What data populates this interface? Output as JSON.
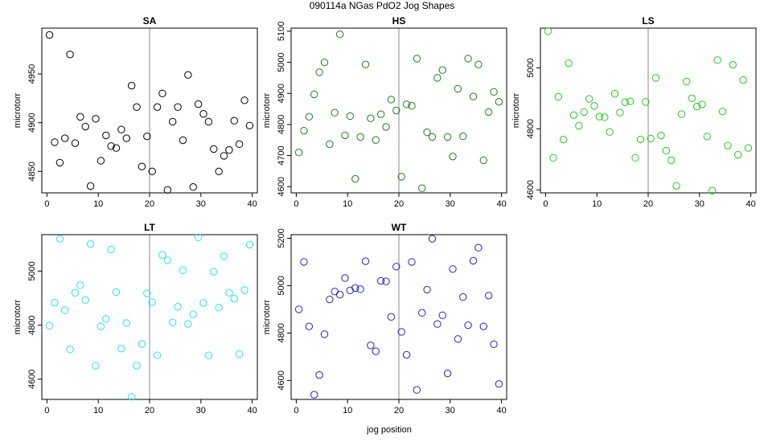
{
  "title": "090114a   NGas PdO2 Jog Shapes",
  "xlabel": "jog position",
  "ylabel": "microtorr",
  "chart_data": [
    {
      "type": "scatter",
      "name": "SA",
      "color": "#000000",
      "xlim": [
        -1,
        41
      ],
      "ylim": [
        4828,
        4997
      ],
      "vline": 20,
      "xticks": [
        0,
        10,
        20,
        30,
        40
      ],
      "yticks": [
        4850,
        4900,
        4950
      ],
      "x": [
        0.5,
        1.5,
        2.5,
        3.5,
        4.5,
        5.5,
        6.5,
        7.5,
        8.5,
        9.5,
        10.5,
        11.5,
        12.5,
        13.5,
        14.5,
        15.5,
        16.5,
        17.5,
        18.5,
        19.5,
        20.5,
        21.5,
        22.5,
        23.5,
        24.5,
        25.5,
        26.5,
        27.5,
        28.5,
        29.5,
        30.5,
        31.5,
        32.5,
        33.5,
        34.5,
        35.5,
        36.5,
        37.5,
        38.5,
        39.5
      ],
      "y": [
        4990,
        4880,
        4859,
        4884,
        4970,
        4879,
        4906,
        4896,
        4835,
        4904,
        4861,
        4887,
        4876,
        4874,
        4893,
        4884,
        4938,
        4916,
        4855,
        4886,
        4850,
        4916,
        4930,
        4831,
        4901,
        4916,
        4882,
        4949,
        4834,
        4919,
        4909,
        4901,
        4873,
        4850,
        4866,
        4872,
        4902,
        4878,
        4923,
        4897
      ]
    },
    {
      "type": "scatter",
      "name": "HS",
      "color": "#1f7a1f",
      "xlim": [
        -1,
        41
      ],
      "ylim": [
        4580,
        5110
      ],
      "vline": 20,
      "xticks": [
        0,
        10,
        20,
        30,
        40
      ],
      "yticks": [
        4600,
        4700,
        4800,
        4900,
        5000,
        5100
      ],
      "x": [
        0.5,
        1.5,
        2.5,
        3.5,
        4.5,
        5.5,
        6.5,
        7.5,
        8.5,
        9.5,
        10.5,
        11.5,
        12.5,
        13.5,
        14.5,
        15.5,
        16.5,
        17.5,
        18.5,
        19.5,
        20.5,
        21.5,
        22.5,
        23.5,
        24.5,
        25.5,
        26.5,
        27.5,
        28.5,
        29.5,
        30.5,
        31.5,
        32.5,
        33.5,
        34.5,
        35.5,
        36.5,
        37.5,
        38.5,
        39.5
      ],
      "y": [
        4710,
        4780,
        4825,
        4897,
        4968,
        5000,
        4737,
        4838,
        5090,
        4765,
        4827,
        4625,
        4760,
        4993,
        4820,
        4750,
        4833,
        4792,
        4880,
        4845,
        4632,
        4865,
        4860,
        5012,
        4595,
        4775,
        4760,
        4950,
        4975,
        4760,
        4697,
        4915,
        4762,
        5012,
        4890,
        4993,
        4685,
        4840,
        4905,
        4873
      ]
    },
    {
      "type": "scatter",
      "name": "LS",
      "color": "#22cc22",
      "xlim": [
        -1,
        41
      ],
      "ylim": [
        4590,
        5130
      ],
      "vline": 20,
      "xticks": [
        0,
        10,
        20,
        30,
        40
      ],
      "yticks": [
        4600,
        4800,
        5000
      ],
      "x": [
        0.5,
        1.5,
        2.5,
        3.5,
        4.5,
        5.5,
        6.5,
        7.5,
        8.5,
        9.5,
        10.5,
        11.5,
        12.5,
        13.5,
        14.5,
        15.5,
        16.5,
        17.5,
        18.5,
        19.5,
        20.5,
        21.5,
        22.5,
        23.5,
        24.5,
        25.5,
        26.5,
        27.5,
        28.5,
        29.5,
        30.5,
        31.5,
        32.5,
        33.5,
        34.5,
        35.5,
        36.5,
        37.5,
        38.5,
        39.5
      ],
      "y": [
        5120,
        4705,
        4905,
        4765,
        5015,
        4845,
        4810,
        4855,
        4898,
        4875,
        4840,
        4838,
        4790,
        4915,
        4853,
        4887,
        4890,
        4705,
        4765,
        4888,
        4768,
        4967,
        4778,
        4728,
        4697,
        4613,
        4848,
        4955,
        4900,
        4873,
        4880,
        4775,
        4597,
        5025,
        4857,
        4745,
        5010,
        4715,
        4960,
        4737
      ]
    },
    {
      "type": "scatter",
      "name": "LT",
      "color": "#22e5e5",
      "xlim": [
        -1,
        41
      ],
      "ylim": [
        4525,
        5135
      ],
      "vline": 20,
      "xticks": [
        0,
        10,
        20,
        30,
        40
      ],
      "yticks": [
        4600,
        4800,
        5000
      ],
      "x": [
        0.5,
        1.5,
        2.5,
        3.5,
        4.5,
        5.5,
        6.5,
        7.5,
        8.5,
        9.5,
        10.5,
        11.5,
        12.5,
        13.5,
        14.5,
        15.5,
        16.5,
        17.5,
        18.5,
        19.5,
        20.5,
        21.5,
        22.5,
        23.5,
        24.5,
        25.5,
        26.5,
        27.5,
        28.5,
        29.5,
        30.5,
        31.5,
        32.5,
        33.5,
        34.5,
        35.5,
        36.5,
        37.5,
        38.5,
        39.5
      ],
      "y": [
        4798,
        4883,
        5120,
        4855,
        4710,
        4920,
        4948,
        4893,
        5100,
        4650,
        4795,
        4823,
        5080,
        4922,
        4713,
        4808,
        4535,
        4650,
        4730,
        4918,
        4885,
        4688,
        5060,
        5040,
        4810,
        4868,
        5003,
        4805,
        4840,
        5125,
        4882,
        4688,
        4998,
        4865,
        5055,
        4920,
        4898,
        4693,
        4930,
        5098
      ]
    },
    {
      "type": "scatter",
      "name": "WT",
      "color": "#2222cc",
      "xlim": [
        -1,
        41
      ],
      "ylim": [
        4520,
        5215
      ],
      "vline": 20,
      "xticks": [
        0,
        10,
        20,
        30,
        40
      ],
      "yticks": [
        4600,
        4800,
        5000,
        5200
      ],
      "x": [
        0.5,
        1.5,
        2.5,
        3.5,
        4.5,
        5.5,
        6.5,
        7.5,
        8.5,
        9.5,
        10.5,
        11.5,
        12.5,
        13.5,
        14.5,
        15.5,
        16.5,
        17.5,
        18.5,
        19.5,
        20.5,
        21.5,
        22.5,
        23.5,
        24.5,
        25.5,
        26.5,
        27.5,
        28.5,
        29.5,
        30.5,
        31.5,
        32.5,
        33.5,
        34.5,
        35.5,
        36.5,
        37.5,
        38.5,
        39.5
      ],
      "y": [
        4900,
        5100,
        4828,
        4540,
        4623,
        4795,
        4942,
        4975,
        4962,
        5032,
        4980,
        4990,
        4985,
        5103,
        4748,
        4723,
        5020,
        5018,
        4868,
        5080,
        4805,
        4708,
        5100,
        4560,
        4885,
        4983,
        5198,
        4838,
        4875,
        4630,
        5070,
        4775,
        4952,
        4833,
        5105,
        5160,
        4828,
        4958,
        4753,
        4585
      ]
    }
  ]
}
